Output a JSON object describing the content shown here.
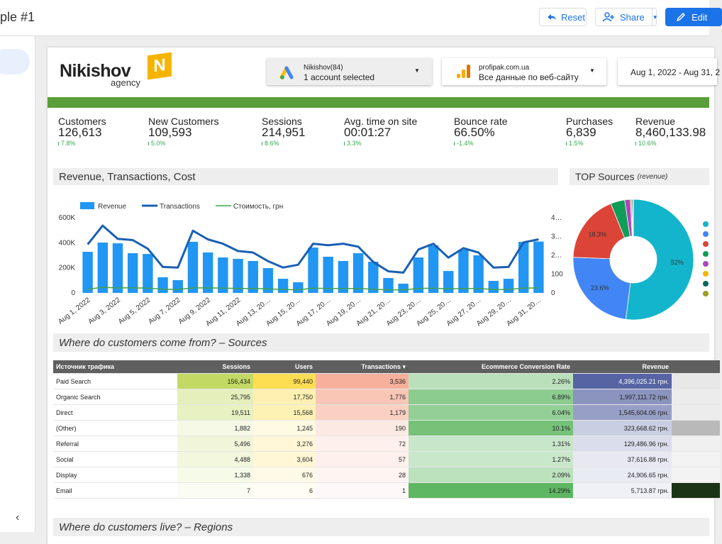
{
  "topbar": {
    "title": "ple #1",
    "buttons": [
      "Reset",
      "Share",
      "Edit"
    ]
  },
  "header": {
    "logo": "Nikishov",
    "logo_badge": "N",
    "logo_sub": "agency",
    "account": {
      "name": "Nikishov(84)",
      "value": "1 account selected"
    },
    "property": {
      "name": "profipak.com.ua",
      "value": "Все данные по веб-сайту"
    },
    "date": "Aug 1, 2022 - Aug 31, 2"
  },
  "kpis": [
    {
      "label": "Customers",
      "value": "126,613",
      "change": "7.8%"
    },
    {
      "label": "New Customers",
      "value": "109,593",
      "change": "5.0%"
    },
    {
      "label": "Sessions",
      "value": "214,951",
      "change": "8.6%"
    },
    {
      "label": "Avg. time on site",
      "value": "00:01:27",
      "change": "3.3%"
    },
    {
      "label": "Bounce rate",
      "value": "66.50%",
      "change": "-1.4%"
    },
    {
      "label": "Purchases",
      "value": "6,839",
      "change": "1.5%"
    },
    {
      "label": "Revenue",
      "value": "8,460,133.98",
      "change": "10.6%"
    }
  ],
  "chart_data": [
    {
      "type": "combo",
      "title": "Revenue, Transactions, Cost",
      "categories": [
        "Aug 1, 2022",
        null,
        "Aug 3, 2022",
        null,
        "Aug 5, 2022",
        null,
        "Aug 7, 2022",
        null,
        "Aug 9, 2022",
        null,
        "Aug 11, 2022",
        null,
        "Aug 13, 20…",
        null,
        "Aug 15, 20…",
        null,
        "Aug 17, 20…",
        null,
        "Aug 19, 20…",
        null,
        "Aug 21, 20…",
        null,
        "Aug 23, 20…",
        null,
        "Aug 25, 20…",
        null,
        "Aug 27, 20…",
        null,
        "Aug 29, 20…",
        null,
        "Aug 31, 20…"
      ],
      "series": [
        {
          "name": "Revenue",
          "type": "bar",
          "color": "#2196f3",
          "values": [
            328000,
            402000,
            396000,
            317000,
            311000,
            125000,
            102000,
            408000,
            323000,
            283000,
            272000,
            255000,
            198000,
            113000,
            85000,
            362000,
            289000,
            255000,
            317000,
            249000,
            119000,
            74000,
            283000,
            379000,
            175000,
            345000,
            300000,
            96000,
            113000,
            408000,
            410000
          ]
        },
        {
          "name": "Transactions",
          "type": "line",
          "axis": "y2",
          "color": "#1a5fb4",
          "values": [
            258,
            358,
            288,
            281,
            235,
            138,
            135,
            331,
            285,
            262,
            223,
            215,
            169,
            135,
            150,
            262,
            254,
            262,
            246,
            165,
            115,
            108,
            231,
            262,
            188,
            238,
            215,
            135,
            138,
            269,
            285
          ]
        },
        {
          "name": "Стоимость, грн",
          "type": "line",
          "color": "#43a047",
          "values": [
            30000,
            45000,
            40000,
            40000,
            38000,
            30000,
            28000,
            40000,
            40000,
            38000,
            35000,
            35000,
            32000,
            28000,
            25000,
            38000,
            35000,
            35000,
            35000,
            30000,
            25000,
            25000,
            35000,
            38000,
            32000,
            35000,
            35000,
            28000,
            28000,
            38000,
            40000
          ]
        }
      ],
      "ylim": [
        0,
        600000
      ],
      "yticks": [
        0,
        {
          "value": 200000,
          "label": "200K"
        },
        {
          "value": 400000,
          "label": "400K"
        },
        {
          "value": 600000,
          "label": "600K"
        }
      ],
      "y2lim": [
        0,
        400
      ],
      "y2ticks": [
        0,
        100,
        {
          "value": 200,
          "label": "2…"
        },
        {
          "value": 300,
          "label": "3…"
        },
        {
          "value": 400,
          "label": "4…"
        }
      ],
      "legend": "top"
    },
    {
      "type": "pie",
      "title": "TOP Sources",
      "subtitle": "(revenue)",
      "values": [
        52,
        23.6,
        18.3,
        3.8,
        1.5,
        0.4,
        0.3,
        0.1
      ],
      "value_labels": [
        "52%",
        "23.6%",
        "18.3%",
        null,
        null,
        null,
        null,
        null
      ],
      "colors": [
        "#12b5cb",
        "#4285f4",
        "#db4437",
        "#0f9d58",
        "#ab47bc",
        "#f4b400",
        "#00695c",
        "#9e9d24"
      ],
      "donut": true
    }
  ],
  "sources_table": {
    "title": "Where do customers come from? – Sources",
    "columns": [
      "Источник трафика",
      "Sessions",
      "Users",
      "Transactions ▾",
      "Ecommerce Conversion Rate",
      "Revenue"
    ],
    "rows": [
      [
        "Paid Search",
        "156,434",
        "99,440",
        "3,536",
        "2.26%",
        "4,396,025.21 грн."
      ],
      [
        "Organic Search",
        "25,795",
        "17,750",
        "1,776",
        "6.89%",
        "1,997,111.72 грн."
      ],
      [
        "Direct",
        "19,511",
        "15,568",
        "1,179",
        "6.04%",
        "1,545,604.06 грн."
      ],
      [
        "(Other)",
        "1,882",
        "1,245",
        "190",
        "10.1%",
        "323,668.62 грн."
      ],
      [
        "Referral",
        "5,496",
        "3,276",
        "72",
        "1.31%",
        "129,486.96 грн."
      ],
      [
        "Social",
        "4,488",
        "3,604",
        "57",
        "1.27%",
        "37,616.88 грн."
      ],
      [
        "Display",
        "1,338",
        "676",
        "28",
        "2.09%",
        "24,906.65 грн."
      ],
      [
        "Email",
        "7",
        "6",
        "1",
        "14.29%",
        "5,713.87 грн."
      ]
    ]
  },
  "regions_title": "Where do customers live? – Regions"
}
